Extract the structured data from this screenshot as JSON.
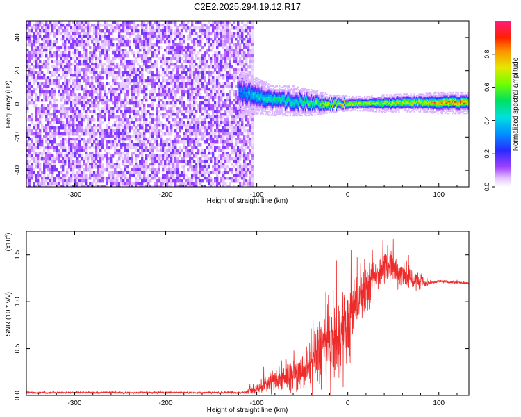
{
  "figure_title": "C2E2.2025.294.19.12.R17",
  "colors": {
    "snr_line": "#ee2b2b",
    "axis": "#000000",
    "background": "#ffffff"
  },
  "chart_data": [
    {
      "type": "heatmap",
      "title": "C2E2.2025.294.19.12.R17",
      "xlabel": "Height of straight line (km)",
      "ylabel": "Frequency (Hz)",
      "xlim": [
        -353,
        133
      ],
      "ylim": [
        -50,
        50
      ],
      "x_ticks": [
        -300,
        -200,
        -100,
        0,
        100
      ],
      "x_tick_labels": [
        "-300",
        "-200",
        "-100",
        "0",
        "100"
      ],
      "y_ticks": [
        -40,
        -20,
        0,
        20,
        40
      ],
      "y_tick_labels": [
        "-40",
        "-20",
        "0",
        "20",
        "40"
      ],
      "noise_region_x": [
        -353,
        -110
      ],
      "signal_ridge": {
        "x": [
          -120,
          -100,
          -80,
          -60,
          -40,
          -20,
          0,
          20,
          40,
          60,
          80,
          100,
          133
        ],
        "center_freq": [
          7,
          5,
          2,
          2,
          1,
          0.5,
          0.5,
          0.5,
          0.5,
          1,
          1,
          1,
          1
        ],
        "halfwidth_freq": [
          6,
          5,
          4,
          4,
          3.5,
          2.5,
          2,
          2,
          2.5,
          2.5,
          2.5,
          3,
          3
        ],
        "peak_amplitude": [
          0.35,
          0.5,
          0.55,
          0.55,
          0.65,
          0.85,
          0.85,
          0.8,
          0.75,
          0.85,
          0.9,
          0.95,
          0.95
        ]
      },
      "colorbar": {
        "label": "Normalized spectral amplitude",
        "range": [
          0,
          1
        ],
        "ticks": [
          0,
          0.2,
          0.4,
          0.6,
          0.8
        ],
        "tick_labels": [
          "0.0",
          "0.2",
          "0.4",
          "0.6",
          "0.8"
        ]
      }
    },
    {
      "type": "line",
      "xlabel": "Height of straight line (km)",
      "ylabel": "SNR (10 * v/v)",
      "exponent_label": "(x10",
      "exponent_power": "4",
      "exponent_close": ")",
      "xlim": [
        -353,
        133
      ],
      "ylim": [
        0,
        17500
      ],
      "x_ticks": [
        -300,
        -200,
        -100,
        0,
        100
      ],
      "x_tick_labels": [
        "-300",
        "-200",
        "-100",
        "0",
        "100"
      ],
      "y_ticks": [
        0,
        5000,
        10000,
        15000
      ],
      "y_tick_labels": [
        "0.0",
        "0.5",
        "1.0",
        "1.5"
      ],
      "envelope": {
        "x": [
          -353,
          -250,
          -150,
          -115,
          -100,
          -85,
          -70,
          -60,
          -50,
          -40,
          -30,
          -20,
          -10,
          0,
          10,
          20,
          30,
          40,
          50,
          60,
          70,
          80,
          90,
          100,
          110,
          133
        ],
        "mean": [
          300,
          300,
          300,
          300,
          700,
          1500,
          1600,
          2200,
          2500,
          3200,
          5000,
          5300,
          6000,
          7000,
          10000,
          11000,
          12500,
          14000,
          13500,
          13000,
          12500,
          12000,
          12000,
          12200,
          12100,
          12000
        ],
        "amp": [
          150,
          150,
          150,
          200,
          900,
          1800,
          1800,
          2200,
          2600,
          3500,
          6000,
          6500,
          6500,
          6000,
          4000,
          3500,
          2500,
          2500,
          2500,
          2200,
          2000,
          1200,
          300,
          200,
          200,
          200
        ]
      }
    }
  ]
}
